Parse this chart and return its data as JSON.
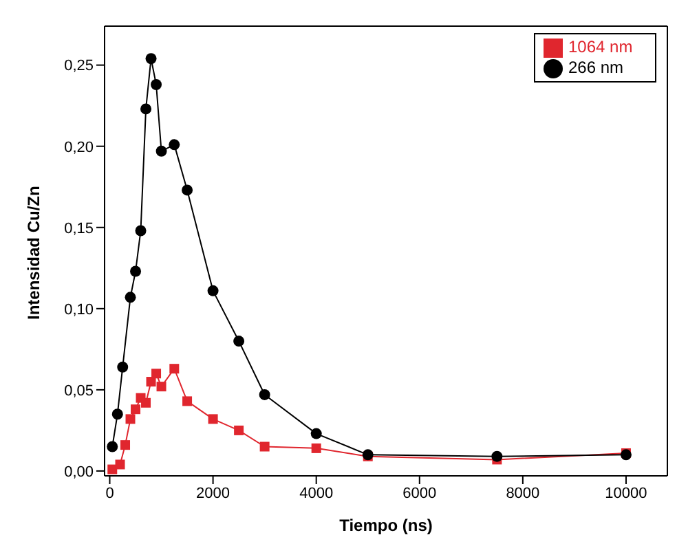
{
  "chart_data": {
    "type": "line",
    "xlabel": "Tiempo (ns)",
    "ylabel": "Intensidad Cu/Zn",
    "xlim": [
      -100,
      10800
    ],
    "ylim": [
      -0.003,
      0.274
    ],
    "xticks": [
      0,
      2000,
      4000,
      6000,
      8000,
      10000
    ],
    "yticks": [
      {
        "value": 0,
        "label": "0,00"
      },
      {
        "value": 0.05,
        "label": "0,05"
      },
      {
        "value": 0.1,
        "label": "0,10"
      },
      {
        "value": 0.15,
        "label": "0,15"
      },
      {
        "value": 0.2,
        "label": "0,20"
      },
      {
        "value": 0.25,
        "label": "0,25"
      }
    ],
    "legend": "top right",
    "grid": false,
    "series": [
      {
        "name": "1064 nm",
        "color": "#e0262e",
        "marker": "square",
        "x": [
          50,
          200,
          300,
          400,
          500,
          600,
          700,
          800,
          900,
          1000,
          1250,
          1500,
          2000,
          2500,
          3000,
          4000,
          5000,
          7500,
          10000
        ],
        "values": [
          0.001,
          0.004,
          0.016,
          0.032,
          0.038,
          0.045,
          0.042,
          0.055,
          0.06,
          0.052,
          0.063,
          0.043,
          0.032,
          0.025,
          0.015,
          0.014,
          0.009,
          0.007,
          0.011
        ]
      },
      {
        "name": "266 nm",
        "color": "#000000",
        "marker": "circle",
        "x": [
          50,
          150,
          250,
          400,
          500,
          600,
          700,
          800,
          900,
          1000,
          1250,
          1500,
          2000,
          2500,
          3000,
          4000,
          5000,
          7500,
          10000
        ],
        "values": [
          0.015,
          0.035,
          0.064,
          0.107,
          0.123,
          0.148,
          0.223,
          0.254,
          0.238,
          0.197,
          0.201,
          0.173,
          0.111,
          0.08,
          0.047,
          0.023,
          0.01,
          0.009,
          0.01
        ]
      }
    ]
  }
}
